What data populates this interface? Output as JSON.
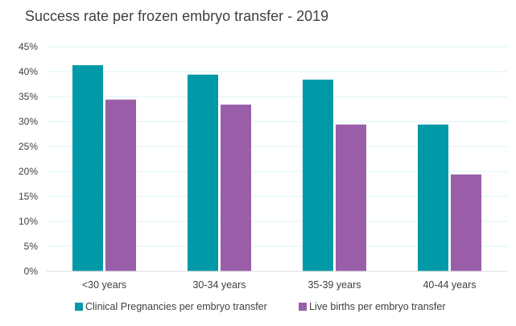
{
  "chart_data": {
    "type": "bar",
    "title": "Success rate per frozen embryo transfer - 2019",
    "categories": [
      "<30 years",
      "30-34 years",
      "35-39 years",
      "40-44 years"
    ],
    "series": [
      {
        "name": "Clinical Pregnancies per embryo transfer",
        "color": "#0099a8",
        "values": [
          41.3,
          39.4,
          38.4,
          29.4
        ]
      },
      {
        "name": "Live births per embryo transfer",
        "color": "#9a5ea9",
        "values": [
          34.4,
          33.4,
          29.4,
          19.4
        ]
      }
    ],
    "yticks": [
      "0%",
      "5%",
      "10%",
      "15%",
      "20%",
      "25%",
      "30%",
      "35%",
      "40%",
      "45%"
    ],
    "ylim": [
      0,
      45
    ],
    "grid": true,
    "legend": "bottom",
    "gridline_color": "#d9f3f7"
  }
}
